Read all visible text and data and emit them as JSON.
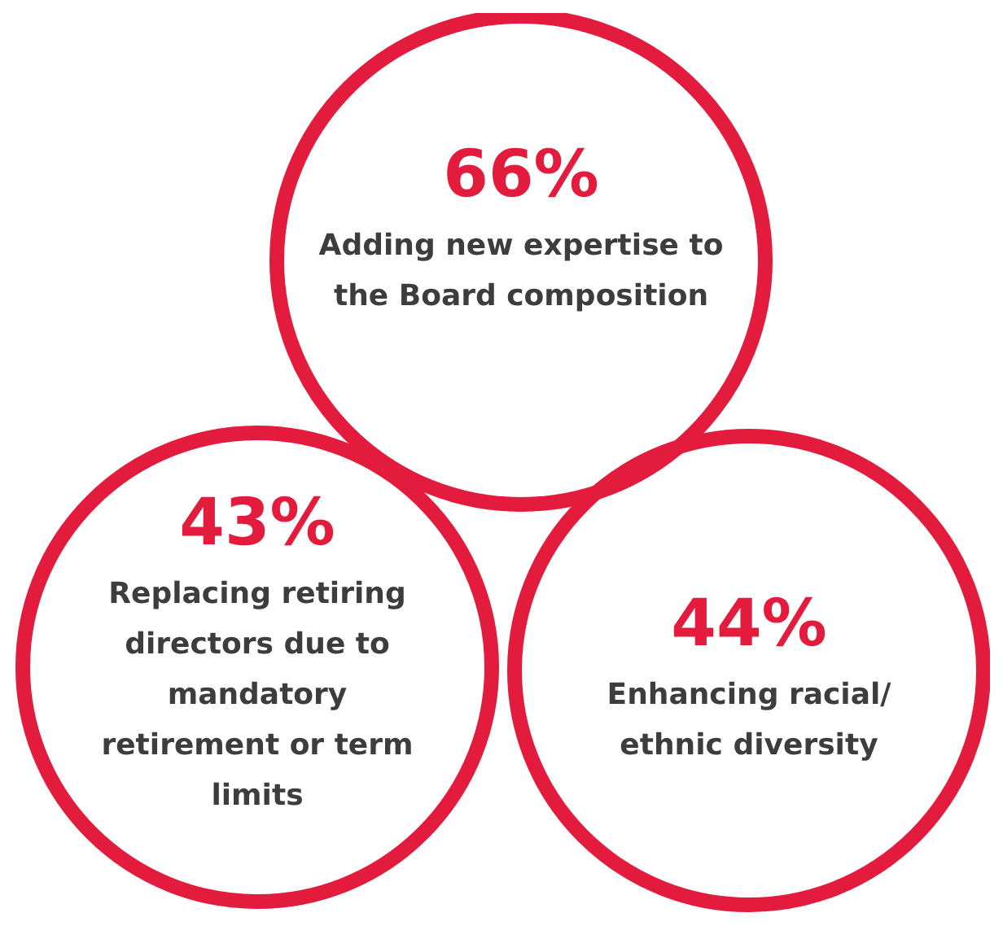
{
  "chart_data": {
    "type": "other",
    "categories": [
      "Adding new expertise to the Board composition",
      "Replacing retiring directors due to mandatory retirement or term limits",
      "Enhancing racial/ ethnic diversity"
    ],
    "values": [
      66,
      43,
      44
    ],
    "value_labels": [
      "66%",
      "43%",
      "44%"
    ],
    "colors": [
      "#e31c3d",
      "#e31c3d",
      "#e31c3d"
    ]
  }
}
